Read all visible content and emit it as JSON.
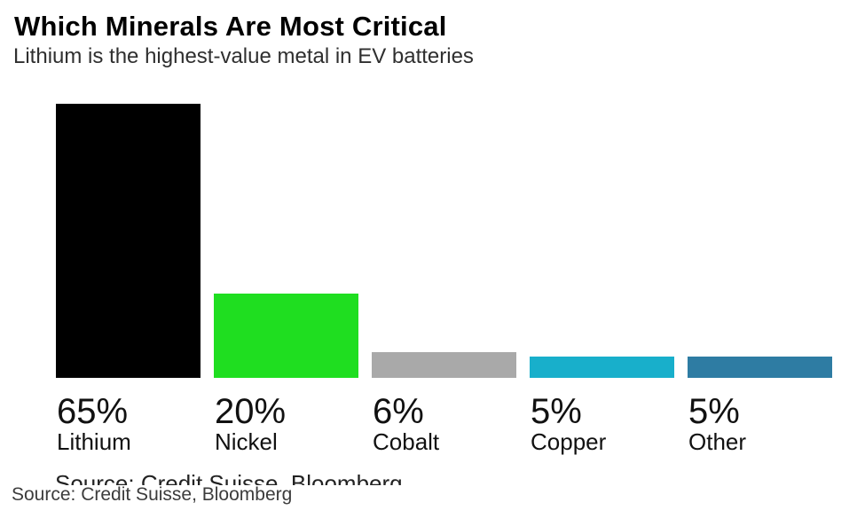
{
  "header": {
    "title": "Which Minerals Are Most Critical",
    "subtitle": "Lithium is the highest-value metal in EV batteries"
  },
  "chart_data": {
    "type": "bar",
    "title": "Which Minerals Are Most Critical",
    "subtitle": "Lithium is the highest-value metal in EV batteries",
    "categories": [
      "Lithium",
      "Nickel",
      "Cobalt",
      "Copper",
      "Other"
    ],
    "values": [
      65,
      20,
      6,
      5,
      5
    ],
    "value_labels": [
      "65%",
      "20%",
      "6%",
      "5%",
      "5%"
    ],
    "bar_colors": [
      "#000000",
      "#1fde20",
      "#a9a9a9",
      "#18afcb",
      "#2e7ca3"
    ],
    "unit": "%",
    "xlabel": "",
    "ylabel": "",
    "ylim": [
      0,
      65
    ],
    "grid": false,
    "legend": "none",
    "axis_lines": "none",
    "label_position": "below-bars",
    "source": "Source: Credit Suisse, Bloomberg"
  },
  "footer": {
    "cropped_source_text": "Source: Credit Suisse, Bloomberg",
    "source": "Source: Credit Suisse, Bloomberg"
  }
}
